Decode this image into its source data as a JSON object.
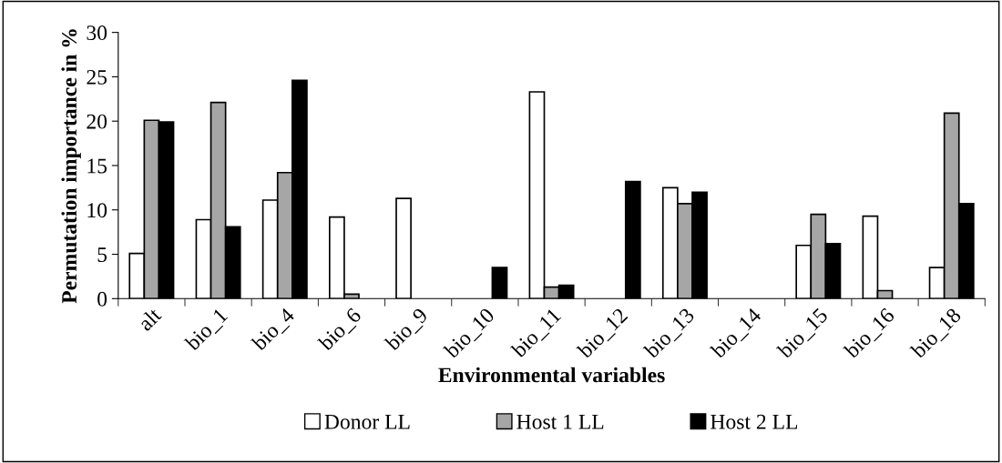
{
  "chart_data": {
    "type": "bar",
    "xlabel": "Environmental variables",
    "ylabel": "Permutation importance in %",
    "categories": [
      "alt",
      "bio_1",
      "bio_4",
      "bio_6",
      "bio_9",
      "bio_10",
      "bio_11",
      "bio_12",
      "bio_13",
      "bio_14",
      "bio_15",
      "bio_16",
      "bio_18"
    ],
    "series": [
      {
        "name": "Donor LL",
        "color": "#ffffff",
        "values": [
          5.1,
          8.9,
          11.1,
          9.2,
          11.3,
          null,
          23.3,
          null,
          12.5,
          null,
          6.0,
          9.3,
          3.5
        ]
      },
      {
        "name": "Host 1 LL",
        "color": "#a6a6a6",
        "values": [
          20.1,
          22.1,
          14.2,
          0.5,
          null,
          null,
          1.3,
          null,
          10.7,
          null,
          9.5,
          0.9,
          20.9
        ]
      },
      {
        "name": "Host 2 LL",
        "color": "#000000",
        "values": [
          19.9,
          8.1,
          24.6,
          null,
          null,
          3.5,
          1.5,
          13.2,
          12.0,
          null,
          6.2,
          null,
          10.7
        ]
      }
    ],
    "ylim": [
      0,
      30
    ],
    "yticks": [
      0,
      5,
      10,
      15,
      20,
      25,
      30
    ],
    "grid": false,
    "legend": "bottom"
  }
}
